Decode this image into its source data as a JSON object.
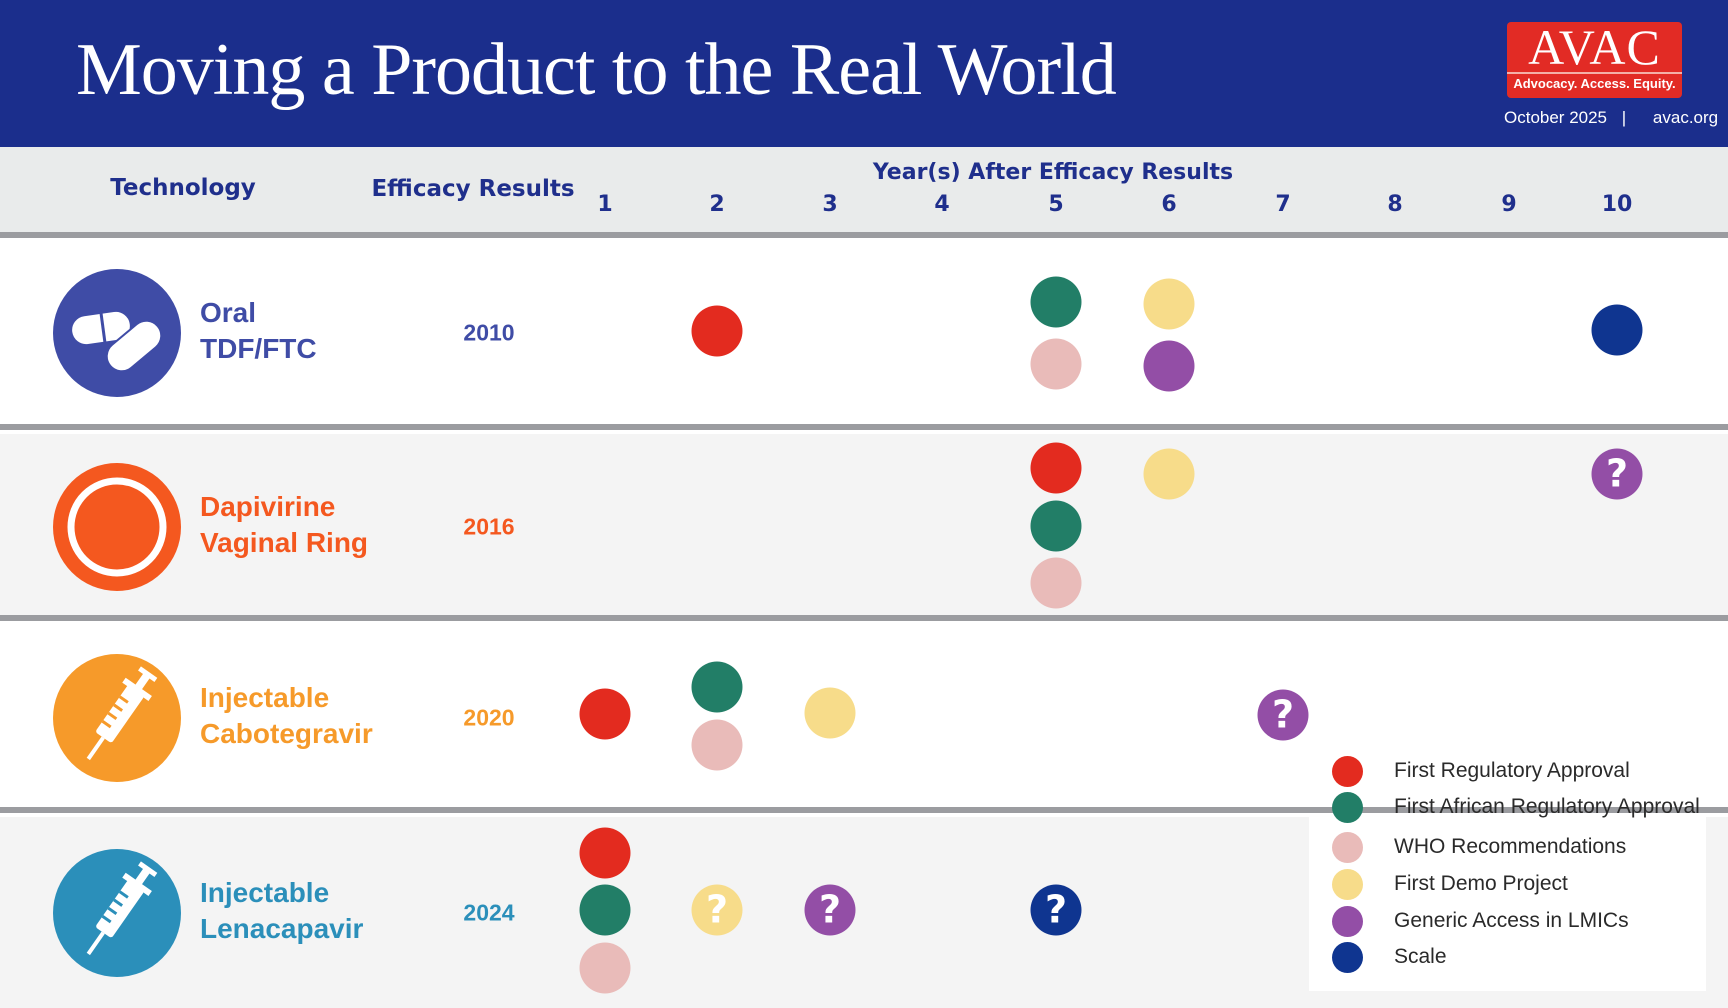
{
  "header": {
    "title": "Moving a Product to the Real World",
    "logo": {
      "name": "AVAC",
      "tagline": "Advocacy. Access. Equity."
    },
    "date": "October 2025",
    "separator": "|",
    "website": "avac.org"
  },
  "columns": {
    "technology": "Technology",
    "efficacy": "Efficacy Results",
    "years_title": "Year(s) After Efficacy Results",
    "years": [
      "1",
      "2",
      "3",
      "4",
      "5",
      "6",
      "7",
      "8",
      "9",
      "10"
    ]
  },
  "milestones": {
    "regulatory": {
      "label": "First Regulatory Approval",
      "color": "#e32b1f"
    },
    "african": {
      "label": "First African Regulatory Approval",
      "color": "#227e67"
    },
    "who": {
      "label": "WHO Recommendations",
      "color": "#e9bbb9"
    },
    "demo": {
      "label": "First Demo Project",
      "color": "#f7dc8a"
    },
    "generic": {
      "label": "Generic Access in LMICs",
      "color": "#934ea6"
    },
    "scale": {
      "label": "Scale",
      "color": "#0f3590"
    }
  },
  "legend": [
    "regulatory",
    "african",
    "who",
    "demo",
    "generic",
    "scale"
  ],
  "uncertain_mark": "?",
  "rows": [
    {
      "name_line1": "Oral",
      "name_line2": "TDF/FTC",
      "icon": "pills-icon",
      "color": "#3f4ca6",
      "efficacy_year": "2010",
      "events": [
        {
          "year": 2,
          "m": "regulatory"
        },
        {
          "year": 5,
          "m": "african"
        },
        {
          "year": 5,
          "m": "who"
        },
        {
          "year": 6,
          "m": "demo"
        },
        {
          "year": 6,
          "m": "generic"
        },
        {
          "year": 10,
          "m": "scale"
        }
      ]
    },
    {
      "name_line1": "Dapivirine",
      "name_line2": "Vaginal Ring",
      "icon": "ring-icon",
      "color": "#f4581f",
      "efficacy_year": "2016",
      "events": [
        {
          "year": 5,
          "m": "regulatory"
        },
        {
          "year": 5,
          "m": "african"
        },
        {
          "year": 5,
          "m": "who"
        },
        {
          "year": 6,
          "m": "demo"
        },
        {
          "year": 10,
          "m": "generic",
          "uncertain": true
        }
      ]
    },
    {
      "name_line1": "Injectable",
      "name_line2": "Cabotegravir",
      "icon": "syringe-icon",
      "color": "#f69a2a",
      "efficacy_year": "2020",
      "events": [
        {
          "year": 1,
          "m": "regulatory"
        },
        {
          "year": 2,
          "m": "african"
        },
        {
          "year": 2,
          "m": "who"
        },
        {
          "year": 3,
          "m": "demo"
        },
        {
          "year": 7,
          "m": "generic",
          "uncertain": true
        }
      ]
    },
    {
      "name_line1": "Injectable",
      "name_line2": "Lenacapavir",
      "icon": "syringe-icon",
      "color": "#2b8fba",
      "efficacy_year": "2024",
      "events": [
        {
          "year": 1,
          "m": "regulatory"
        },
        {
          "year": 1,
          "m": "african"
        },
        {
          "year": 1,
          "m": "who"
        },
        {
          "year": 2,
          "m": "demo",
          "uncertain": true
        },
        {
          "year": 3,
          "m": "generic",
          "uncertain": true
        },
        {
          "year": 5,
          "m": "scale",
          "uncertain": true
        }
      ]
    }
  ]
}
